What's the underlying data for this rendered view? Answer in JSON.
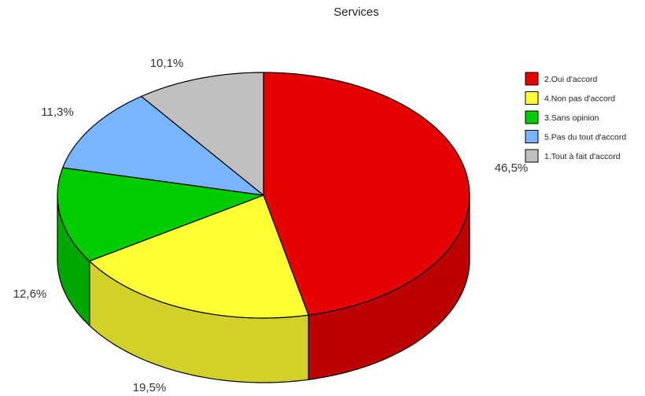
{
  "chart_data": {
    "type": "pie",
    "title": "Services",
    "slices": [
      {
        "label": "2.Oui d'accord",
        "value": 46.5,
        "value_label": "46,5%",
        "color": "#e60000"
      },
      {
        "label": "4.Non pas d'accord",
        "value": 19.5,
        "value_label": "19,5%",
        "color": "#ffff33"
      },
      {
        "label": "3.Sans opinion",
        "value": 12.6,
        "value_label": "12,6%",
        "color": "#00cc00"
      },
      {
        "label": "5.Pas du tout d'accord",
        "value": 11.3,
        "value_label": "11,3%",
        "color": "#78b4ff"
      },
      {
        "label": "1.Tout à fait d'accord",
        "value": 10.1,
        "value_label": "10,1%",
        "color": "#c0c0c0"
      }
    ],
    "legend_position": "right",
    "style": "3d"
  }
}
